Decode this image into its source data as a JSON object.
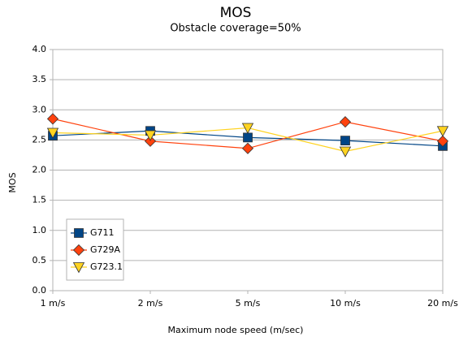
{
  "chart_data": {
    "type": "line",
    "title": "MOS",
    "subtitle": "Obstacle coverage=50%",
    "x_label": "Maximum node speed (m/sec)",
    "y_label": "MOS",
    "categories": [
      "1 m/s",
      "2 m/s",
      "5 m/s",
      "10 m/s",
      "20 m/s"
    ],
    "series": [
      {
        "name": "G711",
        "color": "#004586",
        "marker": "square",
        "values": [
          2.57,
          2.65,
          2.54,
          2.49,
          2.4
        ]
      },
      {
        "name": "G729A",
        "color": "#ff420e",
        "marker": "diamond",
        "values": [
          2.85,
          2.48,
          2.36,
          2.8,
          2.48
        ]
      },
      {
        "name": "G723.1",
        "color": "#ffd320",
        "marker": "triangle-down",
        "values": [
          2.62,
          2.58,
          2.7,
          2.31,
          2.65
        ]
      }
    ],
    "ylim": [
      0,
      4
    ],
    "yticks": [
      {
        "value": 0,
        "label": "0.0"
      },
      0.5,
      {
        "value": 1,
        "label": "1.0"
      },
      1.5,
      {
        "value": 2,
        "label": "2.0"
      },
      2.5,
      {
        "value": 3,
        "label": "3.0"
      },
      3.5,
      {
        "value": 4,
        "label": "4.0"
      }
    ],
    "grid": true,
    "legend": "lower left"
  }
}
